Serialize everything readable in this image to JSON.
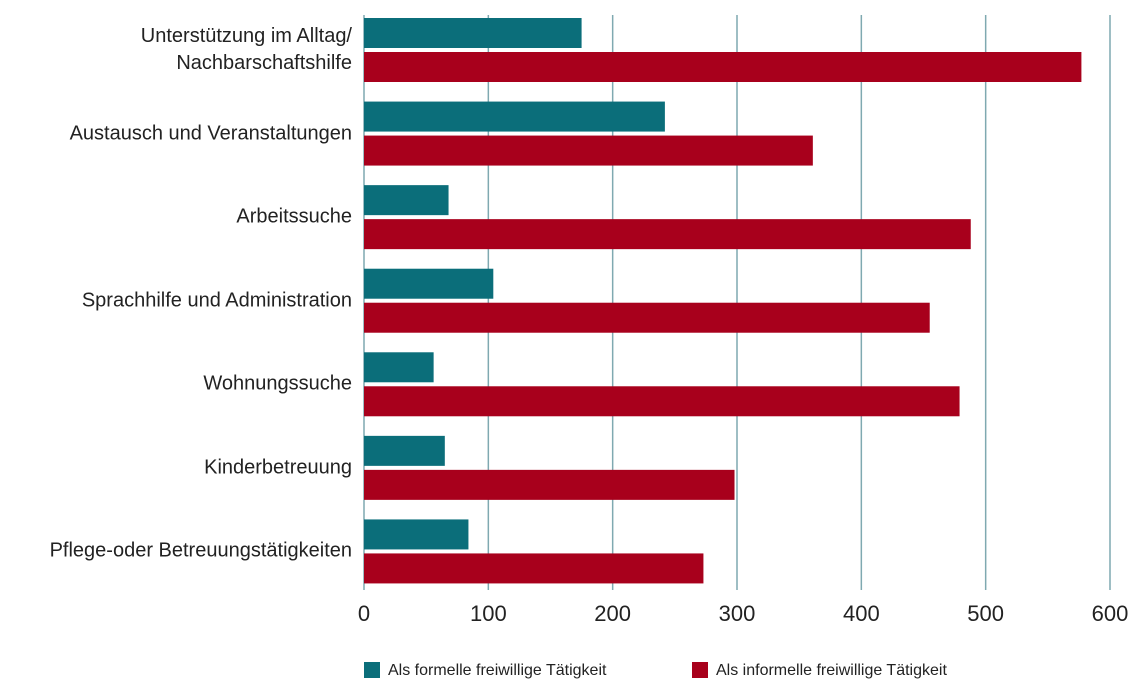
{
  "chart_data": {
    "type": "bar",
    "orientation": "horizontal",
    "categories": [
      "Unterstützung im Alltag/\nNachbarschaftshilfe",
      "Austausch und Veranstaltungen",
      "Arbeitssuche",
      "Sprachhilfe und Administration",
      "Wohnungssuche",
      "Kinderbetreuung",
      "Pflege-oder Betreuungstätigkeiten"
    ],
    "series": [
      {
        "name": "Als formelle freiwillige Tätigkeit",
        "color": "#0b6e7a",
        "values": [
          175,
          242,
          68,
          104,
          56,
          65,
          84
        ]
      },
      {
        "name": "Als informelle freiwillige Tätigkeit",
        "color": "#a8001c",
        "values": [
          577,
          361,
          488,
          455,
          479,
          298,
          273
        ]
      }
    ],
    "xlim": [
      0,
      600
    ],
    "xticks": [
      0,
      100,
      200,
      300,
      400,
      500,
      600
    ],
    "grid": true,
    "legend": "bottom"
  }
}
